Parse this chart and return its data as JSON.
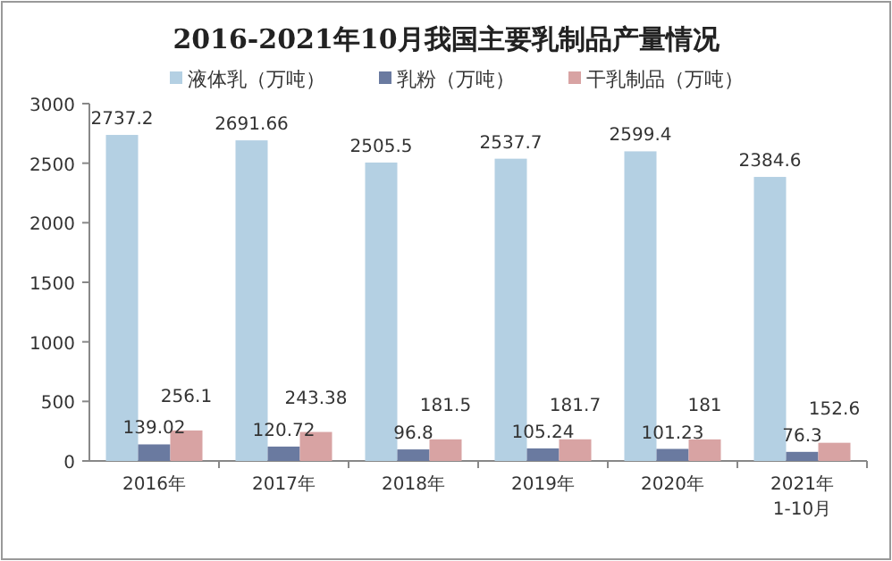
{
  "chart_data": {
    "type": "bar",
    "title": "2016-2021年10月我国主要乳制品产量情况",
    "categories": [
      "2016年",
      "2017年",
      "2018年",
      "2019年",
      "2020年",
      "2021年\n1-10月"
    ],
    "series": [
      {
        "name": "液体乳（万吨）",
        "color": "#b4d0e3",
        "values": [
          2737.2,
          2691.66,
          2505.5,
          2537.7,
          2599.4,
          2384.6
        ]
      },
      {
        "name": "乳粉（万吨）",
        "color": "#6a7aa0",
        "values": [
          139.02,
          120.72,
          96.8,
          105.24,
          101.23,
          76.3
        ]
      },
      {
        "name": "干乳制品（万吨）",
        "color": "#d8a3a3",
        "values": [
          256.1,
          243.38,
          181.5,
          181.7,
          181,
          152.6
        ]
      }
    ],
    "ylim": [
      0,
      3000
    ],
    "yticks": [
      0,
      500,
      1000,
      1500,
      2000,
      2500,
      3000
    ],
    "data_labels": true,
    "legend": "top",
    "grid": false
  }
}
